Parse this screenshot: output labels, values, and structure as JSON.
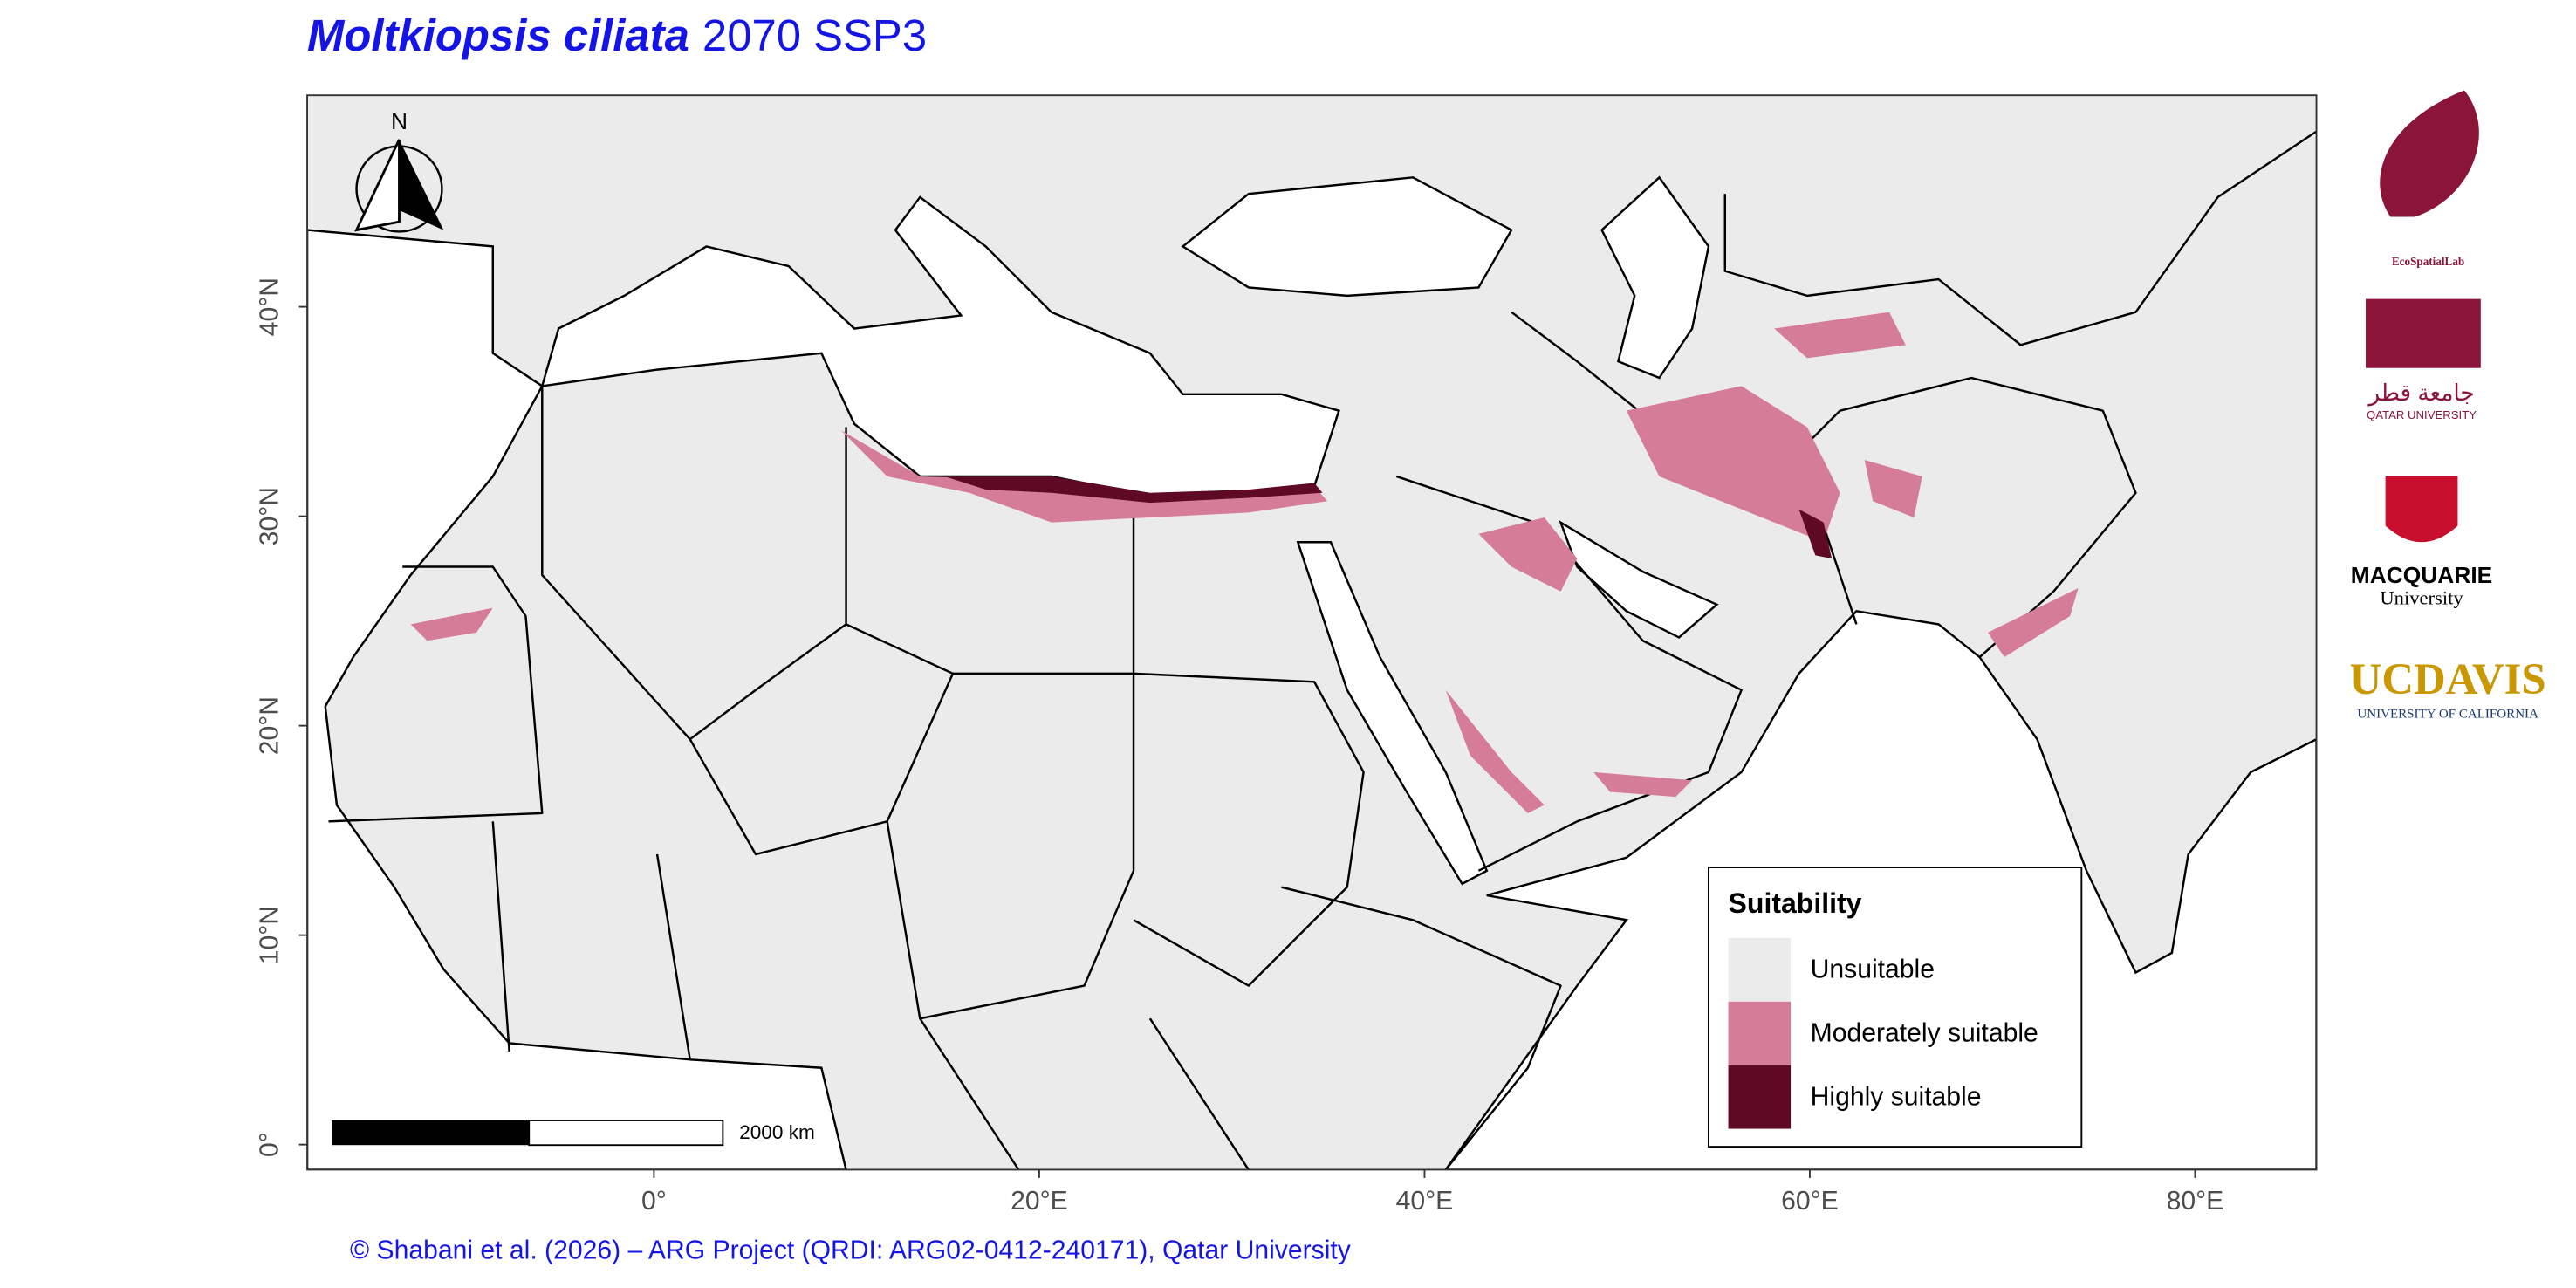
{
  "title": {
    "species": "Moltkiopsis ciliata",
    "scenario": "2070 SSP3"
  },
  "map": {
    "xlim": [
      -18,
      86.3
    ],
    "ylim": [
      -1.2,
      50.1
    ],
    "xticks": [
      {
        "value": 0,
        "label": "0°"
      },
      {
        "value": 20,
        "label": "20°E"
      },
      {
        "value": 40,
        "label": "40°E"
      },
      {
        "value": 60,
        "label": "60°E"
      },
      {
        "value": 80,
        "label": "80°E"
      }
    ],
    "yticks": [
      {
        "value": 0,
        "label": "0°"
      },
      {
        "value": 10,
        "label": "10°N"
      },
      {
        "value": 20,
        "label": "20°N"
      },
      {
        "value": 30,
        "label": "30°N"
      },
      {
        "value": 40,
        "label": "40°N"
      }
    ]
  },
  "legend": {
    "title": "Suitability",
    "items": [
      {
        "label": "Unsuitable",
        "color": "#ebebeb"
      },
      {
        "label": "Moderately suitable",
        "color": "#d47c98"
      },
      {
        "label": "Highly suitable",
        "color": "#5e0a24"
      }
    ]
  },
  "north_label": "N",
  "scale_bar": "2000 km",
  "caption": "© Shabani et al. (2026) – ARG Project (QRDI: ARG02-0412-240171), Qatar University",
  "logos": {
    "ecospatiallab": "EcoSpatialLab",
    "qu_arabic": "جامعة قطر",
    "qu": "QATAR UNIVERSITY",
    "macquarie": "MACQUARIE",
    "macquarie_sub": "University",
    "ucdavis": "UCDAVIS",
    "ucdavis_sub": "UNIVERSITY OF CALIFORNIA"
  }
}
